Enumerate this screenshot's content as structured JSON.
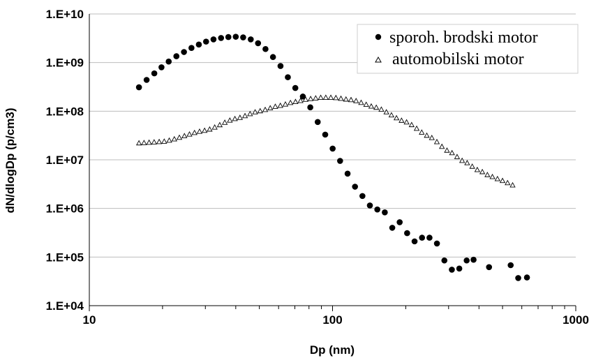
{
  "chart_data": {
    "type": "scatter",
    "xlabel": "Dp (nm)",
    "ylabel": "dN/dlogDp (p/cm3)",
    "xscale": "log",
    "yscale": "log",
    "xlim": [
      10,
      1000
    ],
    "ylim": [
      10000,
      10000000000
    ],
    "x_ticks": [
      "10",
      "100",
      "1000"
    ],
    "y_ticks": [
      "1.E+04",
      "1.E+05",
      "1.E+06",
      "1.E+07",
      "1.E+08",
      "1.E+09",
      "1.E+10"
    ],
    "grid": "horizontal",
    "legend_position": "top-right",
    "series": [
      {
        "name": "sporoh. brodski motor",
        "marker": "filled-circle",
        "color": "#000000",
        "x": [
          16,
          17.2,
          18.5,
          19.8,
          21.2,
          22.8,
          24.5,
          26.3,
          28.2,
          30.2,
          32.4,
          34.8,
          37.3,
          40,
          42.9,
          46.1,
          49.4,
          53,
          56.9,
          61.1,
          65.5,
          70.3,
          75.5,
          81,
          86.9,
          93.3,
          100.1,
          107.4,
          115.3,
          123.7,
          132.7,
          142.4,
          152.8,
          164,
          176,
          188.8,
          202.6,
          217.4,
          233.3,
          250.4,
          268.7,
          288.3,
          309.4,
          332,
          356,
          380,
          440,
          540,
          580,
          630
        ],
        "y": [
          310000000,
          440000000,
          600000000,
          800000000,
          1050000000,
          1350000000,
          1650000000,
          2000000000,
          2350000000,
          2700000000,
          3000000000,
          3200000000,
          3350000000,
          3400000000,
          3300000000,
          3000000000,
          2500000000,
          1900000000,
          1300000000,
          850000000,
          500000000,
          300000000,
          200000000,
          120000000,
          60000000,
          33000000,
          17000000,
          9500000,
          5200000,
          2800000,
          1800000,
          1150000,
          950000,
          830000,
          400000,
          520000,
          310000,
          210000,
          250000,
          250000,
          190000,
          85000,
          55000,
          58000,
          85000,
          88000,
          62000,
          68000,
          37000,
          38000
        ]
      },
      {
        "name": "automobilski motor",
        "marker": "open-triangle",
        "color": "#000000",
        "x_range": [
          16,
          550
        ],
        "point_count": 75,
        "x_samples": [
          16,
          20,
          30,
          40,
          50,
          60,
          70,
          80,
          90,
          100,
          120,
          150,
          200,
          250,
          300,
          350,
          400,
          450,
          500,
          550
        ],
        "y_samples": [
          22000000,
          23500000,
          40000000,
          70000000,
          100000000,
          128000000,
          155000000,
          178000000,
          190000000,
          190000000,
          170000000,
          120000000,
          60000000,
          30000000,
          15000000,
          9000000,
          6000000,
          4500000,
          3700000,
          3000000
        ]
      }
    ]
  }
}
